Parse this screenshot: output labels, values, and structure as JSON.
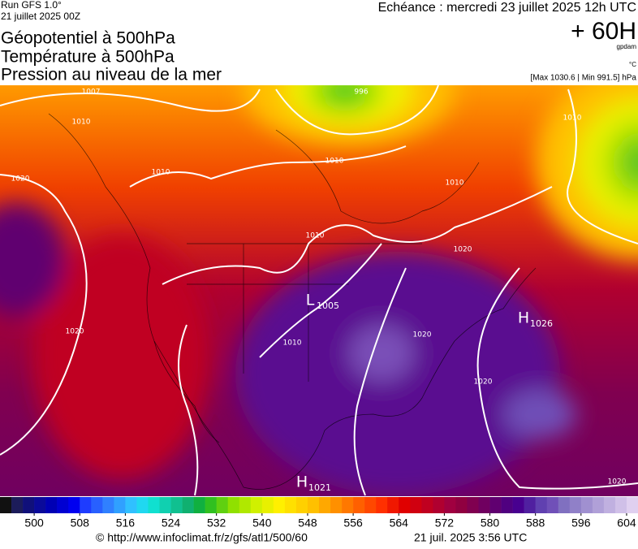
{
  "header": {
    "run": "Run GFS 1.0°",
    "run_date": "21 juillet 2025 00Z",
    "title_lines": [
      "Géopotentiel à 500hPa",
      "Température à 500hPa",
      "Pression au niveau de la mer"
    ],
    "forecast": "Echéance : mercredi 23 juillet 2025 12h UTC",
    "lead": "+ 60H",
    "unit_geo": "gpdam",
    "unit_temp": "°C",
    "pressure_range": "[Max 1030.6 | Min 991.5] hPa"
  },
  "isobar_labels": [
    1007,
    996,
    1010,
    1010,
    1020,
    1010,
    1010,
    1010,
    1020,
    1020,
    1010,
    1020,
    1020,
    1020,
    1010
  ],
  "centers": [
    {
      "symbol": "L",
      "value": 1005
    },
    {
      "symbol": "H",
      "value": 1026
    },
    {
      "symbol": "H",
      "value": 1021
    }
  ],
  "colorbar": {
    "lim": [
      494,
      606
    ],
    "ticks": [
      500,
      508,
      516,
      524,
      532,
      540,
      548,
      556,
      564,
      572,
      580,
      588,
      596,
      604
    ],
    "colors": [
      "#111111",
      "#1c1c5a",
      "#10107a",
      "#0a0a9a",
      "#0000b4",
      "#0000d2",
      "#0000f0",
      "#1e3cff",
      "#2860ff",
      "#3080ff",
      "#30a0ff",
      "#30c0ff",
      "#20d8f0",
      "#10e0d0",
      "#10d0b0",
      "#10c090",
      "#10b070",
      "#10b040",
      "#30c020",
      "#60d010",
      "#90e000",
      "#b0e800",
      "#d0f000",
      "#e8f000",
      "#fff000",
      "#ffe000",
      "#ffd000",
      "#ffc000",
      "#ffa800",
      "#ff9000",
      "#ff7800",
      "#ff6000",
      "#ff4800",
      "#ff3000",
      "#f01800",
      "#e00000",
      "#d00010",
      "#c00020",
      "#b00030",
      "#a00040",
      "#900040",
      "#800050",
      "#700060",
      "#600070",
      "#500080",
      "#480090",
      "#5020a0",
      "#6040b0",
      "#7050b8",
      "#8070c0",
      "#9080c8",
      "#a090d0",
      "#b0a0d8",
      "#c0b0e0",
      "#d0c0e8",
      "#e0d0f0"
    ]
  },
  "footer": {
    "source": "© http://www.infoclimat.fr/z/gfs/atl1/500/60",
    "generated": "21 juil. 2025  3:56 UTC"
  }
}
